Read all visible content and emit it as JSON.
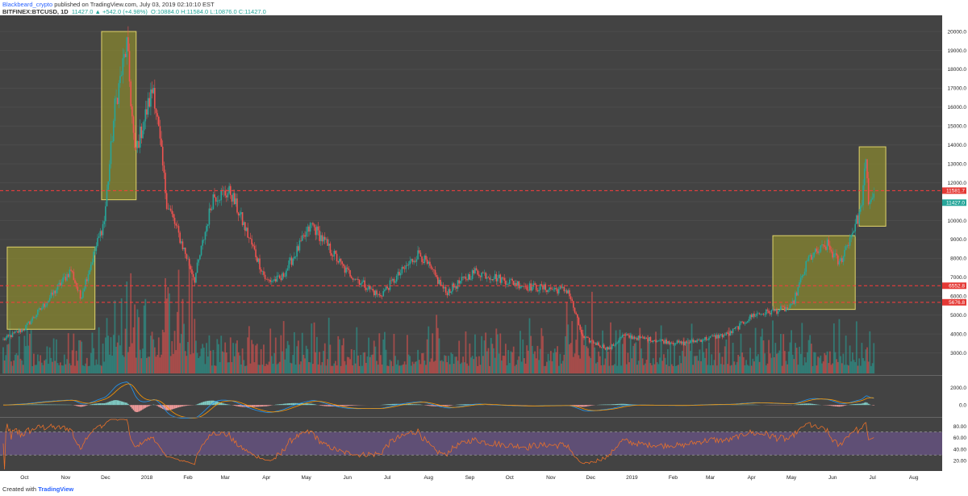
{
  "header": {
    "author": "Blackbeard_crypto",
    "published": "published on TradingView.com, July 03, 2019 02:10:10 EST",
    "symbol": "BITFINEX:BTCUSD, 1D",
    "ohlc_text": "11427.0  ▲ +542.0 (+4.98%)",
    "ohlc_values": "O:10884.0  H:11584.0  L:10876.0  C:11427.0"
  },
  "footer": {
    "created_with": "Created with",
    "brand": "TradingView"
  },
  "colors": {
    "pane_bg": "#434343",
    "up": "#26a69a",
    "down": "#ef5350",
    "highlight_box": "#8c8a2e",
    "highlight_border": "#e0d36a",
    "level_line": "#ff3b3b",
    "macd_line": "#2196f3",
    "signal_line": "#ff9800",
    "rsi_line": "#e8702a",
    "rsi_band": "#7b5ca8"
  },
  "chart_data": {
    "type": "candlestick",
    "price_axis": {
      "ticks": [
        "20000.0",
        "19000.0",
        "18000.0",
        "17000.0",
        "16000.0",
        "15000.0",
        "14000.0",
        "13000.0",
        "12000.0",
        "11000.0",
        "10000.0",
        "9000.0",
        "8000.0",
        "7000.0",
        "6000.0",
        "5000.0",
        "4000.0",
        "3000.0"
      ],
      "range": [
        2000,
        20600
      ]
    },
    "x_axis": {
      "labels": [
        "Oct",
        "Nov",
        "Dec",
        "2018",
        "Feb",
        "Mar",
        "Apr",
        "May",
        "Jun",
        "Jul",
        "Aug",
        "Sep",
        "Oct",
        "Nov",
        "Dec",
        "2019",
        "Feb",
        "Mar",
        "Apr",
        "May",
        "Jun",
        "Jul",
        "Aug"
      ],
      "start": "2017-09-15",
      "end": "2019-08-20"
    },
    "price_path": [
      [
        "2017-09-15",
        3700
      ],
      [
        "2017-10-01",
        4300
      ],
      [
        "2017-10-20",
        5900
      ],
      [
        "2017-11-05",
        7400
      ],
      [
        "2017-11-12",
        5900
      ],
      [
        "2017-11-30",
        10000
      ],
      [
        "2017-12-08",
        16000
      ],
      [
        "2017-12-17",
        19300
      ],
      [
        "2017-12-23",
        13500
      ],
      [
        "2018-01-06",
        17100
      ],
      [
        "2018-01-16",
        11000
      ],
      [
        "2018-02-06",
        6900
      ],
      [
        "2018-02-20",
        11300
      ],
      [
        "2018-03-05",
        11500
      ],
      [
        "2018-04-01",
        6800
      ],
      [
        "2018-04-12",
        6900
      ],
      [
        "2018-05-05",
        9800
      ],
      [
        "2018-05-30",
        7400
      ],
      [
        "2018-06-25",
        6000
      ],
      [
        "2018-07-25",
        8300
      ],
      [
        "2018-08-14",
        6200
      ],
      [
        "2018-09-05",
        7300
      ],
      [
        "2018-10-15",
        6500
      ],
      [
        "2018-11-14",
        6300
      ],
      [
        "2018-11-25",
        3800
      ],
      [
        "2018-12-15",
        3200
      ],
      [
        "2018-12-25",
        3900
      ],
      [
        "2019-02-08",
        3500
      ],
      [
        "2019-03-15",
        4000
      ],
      [
        "2019-04-02",
        5000
      ],
      [
        "2019-05-01",
        5400
      ],
      [
        "2019-05-14",
        8000
      ],
      [
        "2019-05-28",
        8700
      ],
      [
        "2019-06-06",
        7700
      ],
      [
        "2019-06-22",
        10500
      ],
      [
        "2019-06-26",
        13000
      ],
      [
        "2019-06-28",
        11000
      ],
      [
        "2019-07-02",
        11427
      ]
    ],
    "horizontal_levels": [
      {
        "label": "11581.7",
        "value": 11581.7
      },
      {
        "label": "6552.8",
        "value": 6552.8
      },
      {
        "label": "5676.8",
        "value": 5676.8
      }
    ],
    "current_price_label": "11427.0",
    "current_price": 11427,
    "highlight_boxes": [
      {
        "from": "2017-09-18",
        "to": "2017-11-23",
        "low": 4250,
        "high": 8600
      },
      {
        "from": "2017-11-28",
        "to": "2017-12-24",
        "low": 11100,
        "high": 20000
      },
      {
        "from": "2019-04-17",
        "to": "2019-06-18",
        "low": 5300,
        "high": 9200
      },
      {
        "from": "2019-06-21",
        "to": "2019-07-11",
        "low": 9700,
        "high": 13900
      }
    ],
    "macd": {
      "ticks": [
        "2000.0",
        "0.0"
      ],
      "range": [
        -1200,
        3200
      ]
    },
    "rsi": {
      "ticks": [
        "80.00",
        "60.00",
        "40.00",
        "20.00"
      ],
      "range": [
        5,
        92
      ],
      "upper": 70,
      "lower": 30
    }
  }
}
